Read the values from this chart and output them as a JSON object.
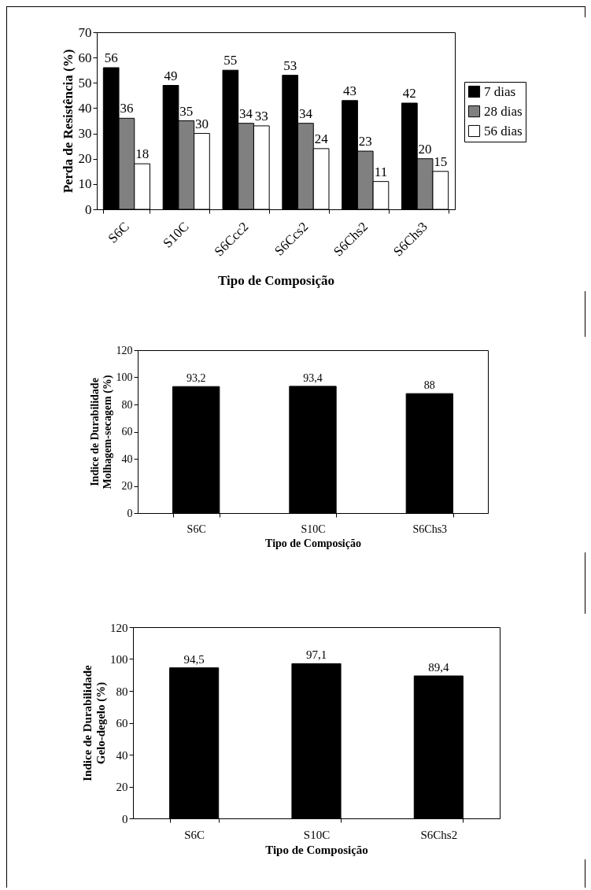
{
  "chart_data": [
    {
      "type": "bar",
      "xlabel": "Tipo de Composição",
      "ylabel": "Perda de Resistência (%)",
      "categories": [
        "S6C",
        "S10C",
        "S6Ccc2",
        "S6Ccs2",
        "S6Chs2",
        "S6Chs3"
      ],
      "series": [
        {
          "name": "7 dias",
          "color": "#000000",
          "values": [
            56,
            49,
            55,
            53,
            43,
            42
          ]
        },
        {
          "name": "28 dias",
          "color": "#808080",
          "values": [
            36,
            35,
            34,
            34,
            23,
            20
          ]
        },
        {
          "name": "56 dias",
          "color": "#ffffff",
          "values": [
            18,
            30,
            33,
            24,
            11,
            15
          ]
        }
      ],
      "ylim": [
        0,
        70
      ],
      "yticks": [
        0,
        10,
        20,
        30,
        40,
        50,
        60,
        70
      ],
      "data_labels": true,
      "legend": "right",
      "grid": false
    },
    {
      "type": "bar",
      "xlabel": "Tipo de Composição",
      "ylabel": "Indice de Durabilidade\nMolhagem-secagem (%)",
      "categories": [
        "S6C",
        "S10C",
        "S6Chs3"
      ],
      "series": [
        {
          "color": "#000000",
          "values": [
            93.2,
            93.4,
            88
          ]
        }
      ],
      "value_labels": [
        "93,2",
        "93,4",
        "88"
      ],
      "ylim": [
        0,
        120
      ],
      "yticks": [
        0,
        20,
        40,
        60,
        80,
        100,
        120
      ],
      "grid": false
    },
    {
      "type": "bar",
      "xlabel": "Tipo de Composição",
      "ylabel": "Indice de Durabilidade\nGelo-degelo (%)",
      "categories": [
        "S6C",
        "S10C",
        "S6Chs2"
      ],
      "series": [
        {
          "color": "#000000",
          "values": [
            94.5,
            97.1,
            89.4
          ]
        }
      ],
      "value_labels": [
        "94,5",
        "97,1",
        "89,4"
      ],
      "ylim": [
        0,
        120
      ],
      "yticks": [
        0,
        20,
        40,
        60,
        80,
        100,
        120
      ],
      "grid": false
    }
  ]
}
